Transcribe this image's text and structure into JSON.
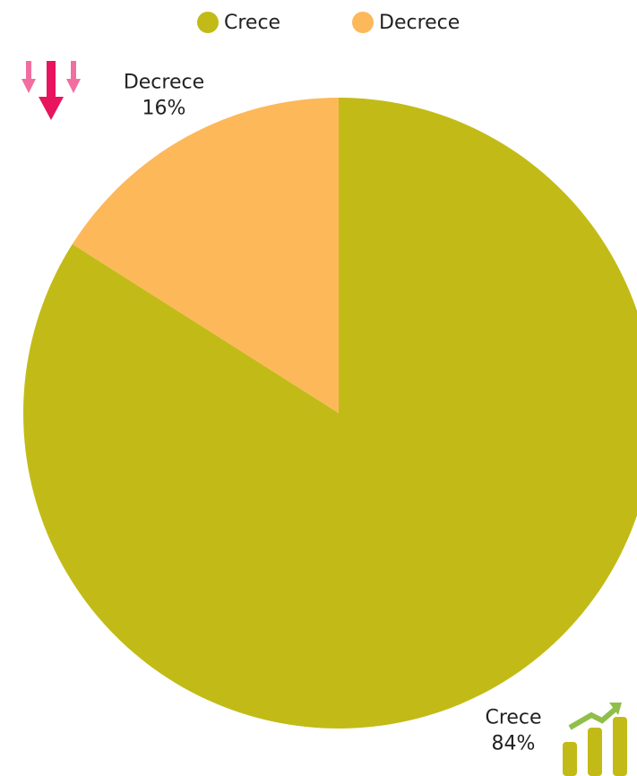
{
  "chart_data": {
    "type": "pie",
    "categories": [
      "Crece",
      "Decrece"
    ],
    "values": [
      84,
      16
    ],
    "value_labels": [
      "84%",
      "16%"
    ],
    "colors": [
      "#c2bb17",
      "#fdb85a"
    ],
    "legend": "top"
  }
}
